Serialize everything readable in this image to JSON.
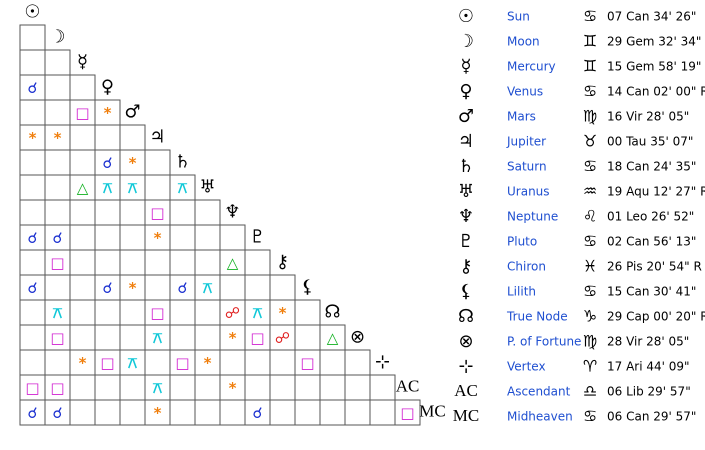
{
  "planets": [
    {
      "glyph": "☉",
      "name": "Sun",
      "sign": "♋",
      "position": "07 Can 34' 26\""
    },
    {
      "glyph": "☽",
      "name": "Moon",
      "sign": "♊",
      "position": "29 Gem 32' 34\""
    },
    {
      "glyph": "☿",
      "name": "Mercury",
      "sign": "♊",
      "position": "15 Gem 58' 19\""
    },
    {
      "glyph": "♀",
      "name": "Venus",
      "sign": "♋",
      "position": "14 Can 02' 00\" R"
    },
    {
      "glyph": "♂",
      "name": "Mars",
      "sign": "♍",
      "position": "16 Vir 28' 05\""
    },
    {
      "glyph": "♃",
      "name": "Jupiter",
      "sign": "♉",
      "position": "00 Tau 35' 07\""
    },
    {
      "glyph": "♄",
      "name": "Saturn",
      "sign": "♋",
      "position": "18 Can 24' 35\""
    },
    {
      "glyph": "♅",
      "name": "Uranus",
      "sign": "♒",
      "position": "19 Aqu 12' 27\" R"
    },
    {
      "glyph": "♆",
      "name": "Neptune",
      "sign": "♌",
      "position": "01 Leo 26' 52\""
    },
    {
      "glyph": "♇",
      "name": "Pluto",
      "sign": "♋",
      "position": "02 Can 56' 13\""
    },
    {
      "glyph": "⚷",
      "name": "Chiron",
      "sign": "♓",
      "position": "26 Pis 20' 54\" R"
    },
    {
      "glyph": "⚸",
      "name": "Lilith",
      "sign": "♋",
      "position": "15 Can 30' 41\""
    },
    {
      "glyph": "☊",
      "name": "True Node",
      "sign": "♑",
      "position": "29 Cap 00' 20\" R"
    },
    {
      "glyph": "⊗",
      "name": "P. of Fortune",
      "sign": "♍",
      "position": "28 Vir 28' 05\""
    },
    {
      "glyph": "⊹",
      "name": "Vertex",
      "sign": "♈",
      "position": "17 Ari 44' 09\""
    },
    {
      "glyph": "AC",
      "name": "Ascendant",
      "sign": "♎",
      "position": "06 Lib 29' 57\""
    },
    {
      "glyph": "MC",
      "name": "Midheaven",
      "sign": "♋",
      "position": "06 Can 29' 57\""
    }
  ],
  "aspect_colors": {
    "☌": "#1a2fd0",
    "□": "#d01fd0",
    "*": "#f08010",
    "△": "#10b020",
    "⚻": "#10c8d8",
    "☍": "#e02020"
  },
  "grid": [
    [
      null
    ],
    [
      null,
      null
    ],
    [
      "☌",
      null,
      null
    ],
    [
      null,
      null,
      "□",
      "*"
    ],
    [
      "*",
      "*",
      null,
      null,
      null
    ],
    [
      null,
      null,
      null,
      "☌",
      "*",
      null
    ],
    [
      null,
      null,
      "△",
      "⚻",
      "⚻",
      null,
      "⚻"
    ],
    [
      null,
      null,
      null,
      null,
      null,
      "□",
      null,
      null
    ],
    [
      "☌",
      "☌",
      null,
      null,
      null,
      "*",
      null,
      null,
      null
    ],
    [
      null,
      "□",
      null,
      null,
      null,
      null,
      null,
      null,
      "△",
      null
    ],
    [
      "☌",
      null,
      null,
      "☌",
      "*",
      null,
      "☌",
      "⚻",
      null,
      null,
      null
    ],
    [
      null,
      "⚻",
      null,
      null,
      null,
      "□",
      null,
      null,
      "☍",
      "⚻",
      "*",
      null
    ],
    [
      null,
      "□",
      null,
      null,
      null,
      "⚻",
      null,
      null,
      "*",
      "□",
      "☍",
      null,
      "△"
    ],
    [
      null,
      null,
      "*",
      "□",
      "⚻",
      null,
      "□",
      "*",
      null,
      null,
      null,
      "□",
      null,
      null
    ],
    [
      "□",
      "□",
      null,
      null,
      null,
      "⚻",
      null,
      null,
      "*",
      null,
      null,
      null,
      null,
      null,
      null
    ],
    [
      "☌",
      "☌",
      null,
      null,
      null,
      "*",
      null,
      null,
      null,
      "☌",
      null,
      null,
      null,
      null,
      null,
      "□"
    ]
  ]
}
